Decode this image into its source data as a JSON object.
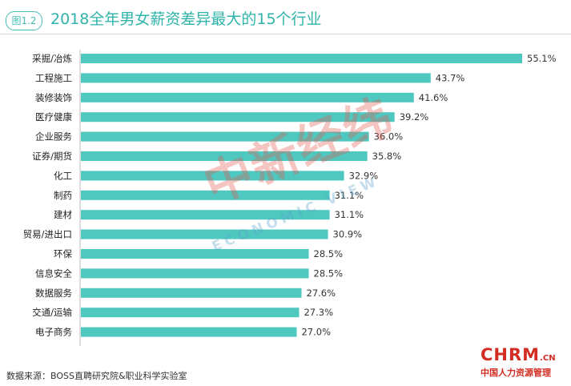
{
  "header": {
    "figure_badge": "图1.2",
    "title": "2018全年男女薪资差异最大的15个行业"
  },
  "source": "数据来源：BOSS直聘研究院&职业科学实验室",
  "watermark": {
    "chinese": "中新经纬",
    "english": "ECONOMIC VIEW"
  },
  "logo": {
    "main": "CHRM",
    "suffix": ".CN",
    "sub": "中国人力资源管理"
  },
  "colors": {
    "bar": "#4fc8c0",
    "accent": "#2fb3aa",
    "watermark_red": "#e25a50",
    "logo_red": "#d32d23"
  },
  "chart_data": {
    "type": "bar",
    "orientation": "horizontal",
    "categories": [
      "采掘/冶炼",
      "工程施工",
      "装修装饰",
      "医疗健康",
      "企业服务",
      "证券/期货",
      "化工",
      "制药",
      "建材",
      "贸易/进出口",
      "环保",
      "信息安全",
      "数据服务",
      "交通/运输",
      "电子商务"
    ],
    "values": [
      55.1,
      43.7,
      41.6,
      39.2,
      36.0,
      35.8,
      32.9,
      31.1,
      31.1,
      30.9,
      28.5,
      28.5,
      27.6,
      27.3,
      27.0
    ],
    "value_labels": [
      "55.1%",
      "43.7%",
      "41.6%",
      "39.2%",
      "36.0%",
      "35.8%",
      "32.9%",
      "31.1%",
      "31.1%",
      "30.9%",
      "28.5%",
      "28.5%",
      "27.6%",
      "27.3%",
      "27.0%"
    ],
    "title": "2018全年男女薪资差异最大的15个行业",
    "xlabel": "",
    "ylabel": "",
    "xlim": [
      0,
      55.1
    ],
    "grid": false,
    "legend": "none"
  }
}
